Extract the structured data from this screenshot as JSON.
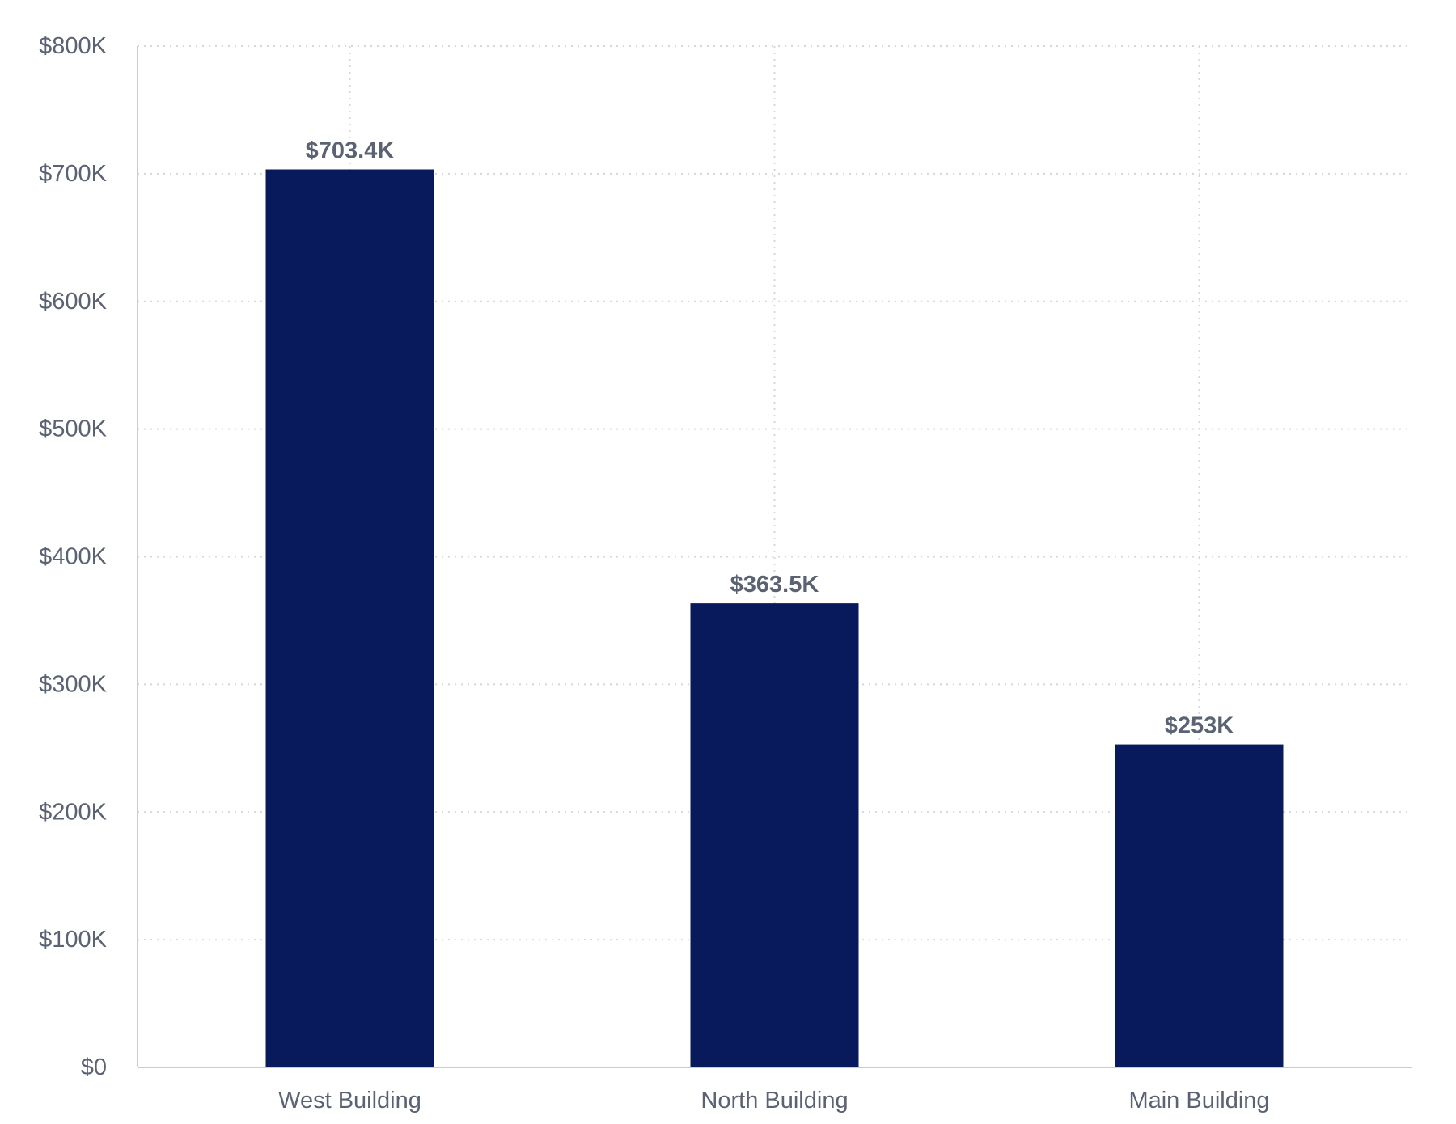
{
  "colors": {
    "bar": "#081a5c",
    "grid": "#d4d7dc",
    "axis": "#c9ccd2",
    "text": "#5a6273"
  },
  "chart_data": {
    "type": "bar",
    "title": "",
    "xlabel": "",
    "ylabel": "",
    "categories": [
      "West Building",
      "North Building",
      "Main Building"
    ],
    "values": [
      703400,
      363500,
      253000
    ],
    "data_labels": [
      "$703.4K",
      "$363.5K",
      "$253K"
    ],
    "ylim": [
      0,
      800000
    ],
    "yticks": [
      0,
      100000,
      200000,
      300000,
      400000,
      500000,
      600000,
      700000,
      800000
    ],
    "ytick_labels": [
      "$0",
      "$100K",
      "$200K",
      "$300K",
      "$400K",
      "$500K",
      "$600K",
      "$700K",
      "$800K"
    ],
    "grid": true,
    "legend": "none"
  }
}
